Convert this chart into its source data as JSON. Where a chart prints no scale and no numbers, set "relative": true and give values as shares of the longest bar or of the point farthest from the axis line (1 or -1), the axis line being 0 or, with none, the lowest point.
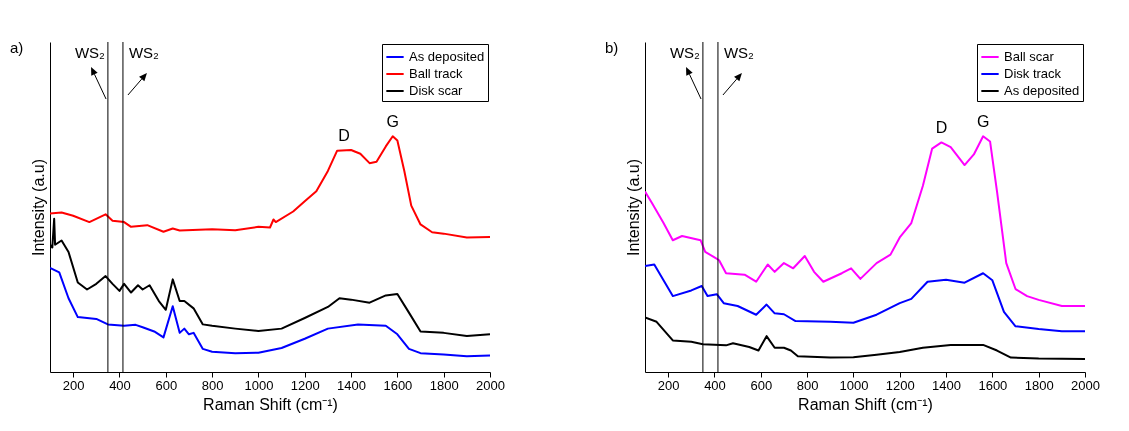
{
  "chart_data": [
    {
      "type": "line",
      "title": "a)",
      "xlabel": "Raman Shift (cm⁻¹)",
      "ylabel": "Intensity (a.u)",
      "relative": true,
      "xlim": [
        100,
        2000
      ],
      "xticks": [
        200,
        400,
        600,
        800,
        1000,
        1200,
        1400,
        1600,
        1800,
        2000
      ],
      "tick_labels": "x",
      "grid": false,
      "legend": "top right",
      "ref_lines": [
        {
          "axis": "x",
          "value": 350,
          "label": "WS₂"
        },
        {
          "axis": "x",
          "value": 415,
          "label": "WS₂"
        }
      ],
      "annotations": [
        {
          "text": "D",
          "x": 1370,
          "y": 0.94
        },
        {
          "text": "G",
          "x": 1580,
          "y": 1
        }
      ],
      "series": [
        {
          "name": "As deposited",
          "color": "#0000ff",
          "x": [
            100,
            140,
            180,
            220,
            300,
            350,
            420,
            470,
            500,
            550,
            590,
            630,
            660,
            680,
            700,
            720,
            760,
            800,
            900,
            1000,
            1100,
            1200,
            1300,
            1430,
            1550,
            1600,
            1650,
            1700,
            1800,
            1900,
            2000
          ],
          "values": [
            0.442,
            0.423,
            0.313,
            0.233,
            0.225,
            0.202,
            0.196,
            0.2,
            0.19,
            0.172,
            0.147,
            0.279,
            0.166,
            0.184,
            0.16,
            0.166,
            0.098,
            0.086,
            0.08,
            0.082,
            0.102,
            0.141,
            0.184,
            0.202,
            0.196,
            0.16,
            0.098,
            0.08,
            0.074,
            0.067,
            0.07
          ]
        },
        {
          "name": "Ball track",
          "color": "#ff0000",
          "x": [
            100,
            150,
            200,
            270,
            340,
            370,
            420,
            450,
            520,
            590,
            630,
            660,
            800,
            900,
            1000,
            1050,
            1065,
            1075,
            1150,
            1200,
            1250,
            1300,
            1340,
            1400,
            1440,
            1480,
            1510,
            1550,
            1580,
            1600,
            1630,
            1660,
            1700,
            1750,
            1800,
            1900,
            2000
          ],
          "values": [
            0.672,
            0.677,
            0.663,
            0.636,
            0.669,
            0.642,
            0.636,
            0.616,
            0.623,
            0.595,
            0.609,
            0.6,
            0.606,
            0.601,
            0.616,
            0.613,
            0.647,
            0.636,
            0.681,
            0.724,
            0.767,
            0.853,
            0.939,
            0.942,
            0.926,
            0.886,
            0.892,
            0.957,
            1,
            0.982,
            0.853,
            0.706,
            0.626,
            0.593,
            0.587,
            0.571,
            0.573
          ]
        },
        {
          "name": "Disk scar",
          "color": "#000000",
          "x": [
            100,
            110,
            118,
            122,
            150,
            180,
            220,
            260,
            300,
            340,
            370,
            400,
            420,
            450,
            480,
            500,
            530,
            570,
            600,
            630,
            660,
            680,
            720,
            760,
            800,
            900,
            1000,
            1100,
            1200,
            1300,
            1350,
            1400,
            1480,
            1550,
            1600,
            1650,
            1700,
            1800,
            1900,
            2000
          ],
          "values": [
            0.54,
            0.528,
            0.65,
            0.54,
            0.558,
            0.509,
            0.38,
            0.35,
            0.374,
            0.407,
            0.374,
            0.344,
            0.374,
            0.337,
            0.368,
            0.35,
            0.368,
            0.301,
            0.264,
            0.393,
            0.301,
            0.301,
            0.27,
            0.202,
            0.196,
            0.184,
            0.174,
            0.184,
            0.229,
            0.276,
            0.313,
            0.307,
            0.294,
            0.325,
            0.331,
            0.252,
            0.172,
            0.166,
            0.153,
            0.16
          ]
        }
      ]
    },
    {
      "type": "line",
      "title": "b)",
      "xlabel": "Raman Shift (cm⁻¹)",
      "ylabel": "Intensity (a.u)",
      "relative": true,
      "xlim": [
        100,
        2000
      ],
      "xticks": [
        200,
        400,
        600,
        800,
        1000,
        1200,
        1400,
        1600,
        1800,
        2000
      ],
      "tick_labels": "x",
      "grid": false,
      "legend": "top right",
      "ref_lines": [
        {
          "axis": "x",
          "value": 350,
          "label": "WS₂"
        },
        {
          "axis": "x",
          "value": 415,
          "label": "WS₂"
        }
      ],
      "annotations": [
        {
          "text": "D",
          "x": 1380,
          "y": 0.974
        },
        {
          "text": "G",
          "x": 1560,
          "y": 1
        }
      ],
      "series": [
        {
          "name": "Ball scar",
          "color": "#ff00ff",
          "x": [
            100,
            130,
            180,
            220,
            260,
            340,
            360,
            400,
            420,
            450,
            530,
            580,
            630,
            660,
            700,
            740,
            790,
            830,
            870,
            950,
            990,
            1030,
            1100,
            1160,
            1200,
            1250,
            1300,
            1340,
            1380,
            1420,
            1480,
            1520,
            1560,
            1590,
            1620,
            1660,
            1700,
            1750,
            1800,
            1900,
            2000
          ],
          "values": [
            0.766,
            0.717,
            0.632,
            0.559,
            0.577,
            0.559,
            0.51,
            0.486,
            0.474,
            0.419,
            0.413,
            0.383,
            0.456,
            0.425,
            0.462,
            0.44,
            0.492,
            0.425,
            0.383,
            0.419,
            0.44,
            0.395,
            0.462,
            0.498,
            0.571,
            0.632,
            0.79,
            0.948,
            0.974,
            0.954,
            0.878,
            0.923,
            1,
            0.978,
            0.766,
            0.462,
            0.352,
            0.322,
            0.306,
            0.28,
            0.28
          ]
        },
        {
          "name": "Disk track",
          "color": "#0000ff",
          "x": [
            100,
            140,
            180,
            220,
            300,
            345,
            370,
            410,
            440,
            500,
            580,
            625,
            660,
            700,
            750,
            900,
            1000,
            1100,
            1200,
            1250,
            1320,
            1400,
            1480,
            1560,
            1600,
            1650,
            1700,
            1800,
            1900,
            2000
          ],
          "values": [
            0.45,
            0.456,
            0.389,
            0.322,
            0.346,
            0.365,
            0.322,
            0.33,
            0.292,
            0.28,
            0.243,
            0.286,
            0.249,
            0.245,
            0.216,
            0.213,
            0.209,
            0.243,
            0.292,
            0.31,
            0.383,
            0.391,
            0.379,
            0.419,
            0.389,
            0.255,
            0.194,
            0.182,
            0.173,
            0.173
          ]
        },
        {
          "name": "As deposited",
          "color": "#000000",
          "x": [
            100,
            150,
            220,
            300,
            350,
            450,
            480,
            550,
            590,
            625,
            660,
            700,
            730,
            760,
            900,
            1000,
            1100,
            1200,
            1300,
            1420,
            1560,
            1620,
            1680,
            1800,
            2000
          ],
          "values": [
            0.231,
            0.213,
            0.134,
            0.128,
            0.118,
            0.113,
            0.122,
            0.106,
            0.091,
            0.152,
            0.103,
            0.103,
            0.091,
            0.067,
            0.061,
            0.063,
            0.073,
            0.085,
            0.103,
            0.115,
            0.115,
            0.091,
            0.061,
            0.057,
            0.055
          ]
        }
      ]
    }
  ]
}
